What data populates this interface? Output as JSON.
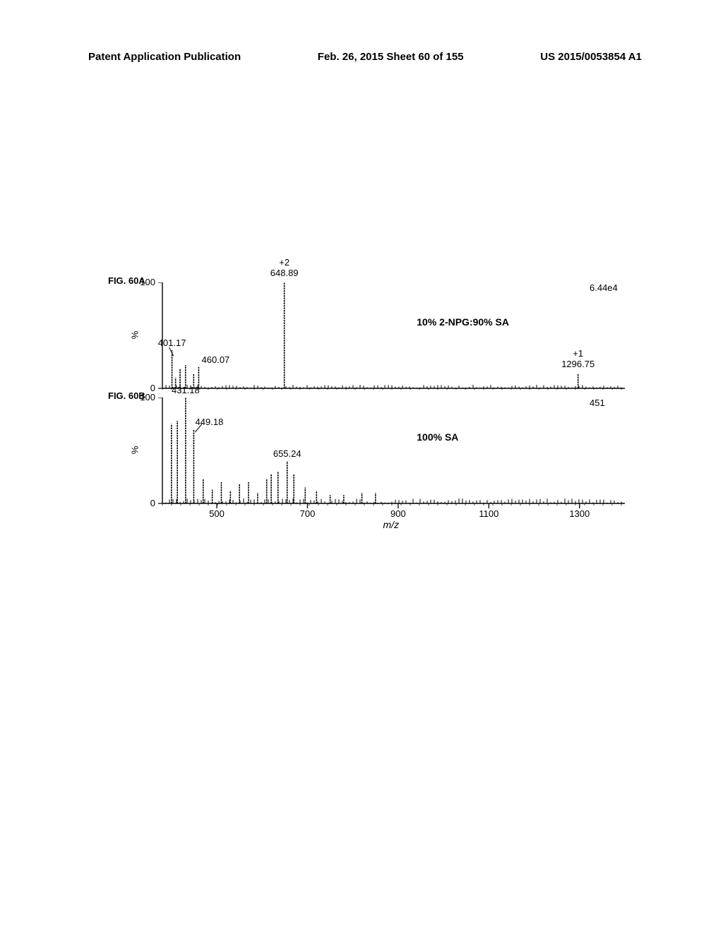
{
  "header": {
    "left": "Patent Application Publication",
    "center": "Feb. 26, 2015  Sheet 60 of 155",
    "right": "US 2015/0053854 A1"
  },
  "chartA": {
    "type": "mass-spectrum",
    "fig_label": "FIG. 60A",
    "matrix_label": "10% 2-NPG:90% SA",
    "intensity_label": "6.44e4",
    "y_axis_label": "%",
    "y_ticks": [
      0,
      100
    ],
    "x_range": [
      380,
      1400
    ],
    "peaks": [
      {
        "mz": 401.17,
        "height": 36,
        "label": "401.17",
        "show_charge": false
      },
      {
        "mz": 409,
        "height": 10,
        "label": "",
        "show_charge": false
      },
      {
        "mz": 419,
        "height": 18,
        "label": "",
        "show_charge": false
      },
      {
        "mz": 431,
        "height": 22,
        "label": "",
        "show_charge": false
      },
      {
        "mz": 449,
        "height": 14,
        "label": "",
        "show_charge": false
      },
      {
        "mz": 460.07,
        "height": 20,
        "label": "460.07",
        "show_charge": false
      },
      {
        "mz": 648.89,
        "height": 100,
        "label": "648.89",
        "charge": "+2",
        "show_charge": true
      },
      {
        "mz": 1296.75,
        "height": 14,
        "label": "1296.75",
        "charge": "+1",
        "show_charge": true
      }
    ],
    "noise_height": 4
  },
  "chartB": {
    "type": "mass-spectrum",
    "fig_label": "FIG. 60B",
    "matrix_label": "100% SA",
    "intensity_label": "451",
    "y_axis_label": "%",
    "y_ticks": [
      0,
      100
    ],
    "x_range": [
      380,
      1400
    ],
    "x_ticks": [
      500,
      700,
      900,
      1100,
      1300
    ],
    "x_axis_label": "m/z",
    "peaks": [
      {
        "mz": 400,
        "height": 75,
        "label": "",
        "show_charge": false
      },
      {
        "mz": 413,
        "height": 78,
        "label": "",
        "show_charge": false
      },
      {
        "mz": 431.18,
        "height": 100,
        "label": "431.18",
        "show_charge": false
      },
      {
        "mz": 449.18,
        "height": 70,
        "label": "449.18",
        "show_charge": false
      },
      {
        "mz": 470,
        "height": 23,
        "label": "",
        "show_charge": false
      },
      {
        "mz": 490,
        "height": 13,
        "label": "",
        "show_charge": false
      },
      {
        "mz": 510,
        "height": 20,
        "label": "",
        "show_charge": false
      },
      {
        "mz": 530,
        "height": 12,
        "label": "",
        "show_charge": false
      },
      {
        "mz": 550,
        "height": 18,
        "label": "",
        "show_charge": false
      },
      {
        "mz": 570,
        "height": 20,
        "label": "",
        "show_charge": false
      },
      {
        "mz": 590,
        "height": 10,
        "label": "",
        "show_charge": false
      },
      {
        "mz": 610,
        "height": 23,
        "label": "",
        "show_charge": false
      },
      {
        "mz": 620,
        "height": 28,
        "label": "",
        "show_charge": false
      },
      {
        "mz": 635,
        "height": 30,
        "label": "",
        "show_charge": false
      },
      {
        "mz": 655.24,
        "height": 40,
        "label": "655.24",
        "show_charge": false
      },
      {
        "mz": 670,
        "height": 28,
        "label": "",
        "show_charge": false
      },
      {
        "mz": 695,
        "height": 15,
        "label": "",
        "show_charge": false
      },
      {
        "mz": 720,
        "height": 12,
        "label": "",
        "show_charge": false
      },
      {
        "mz": 750,
        "height": 8,
        "label": "",
        "show_charge": false
      },
      {
        "mz": 780,
        "height": 8,
        "label": "",
        "show_charge": false
      },
      {
        "mz": 820,
        "height": 10,
        "label": "",
        "show_charge": false
      },
      {
        "mz": 850,
        "height": 10,
        "label": "",
        "show_charge": false
      }
    ],
    "noise_height": 6
  },
  "style": {
    "chart_plot_width": 655,
    "chart_plot_height": 150,
    "chart_left_offset": 75,
    "peak_color": "#000000",
    "axis_color": "#000000"
  }
}
